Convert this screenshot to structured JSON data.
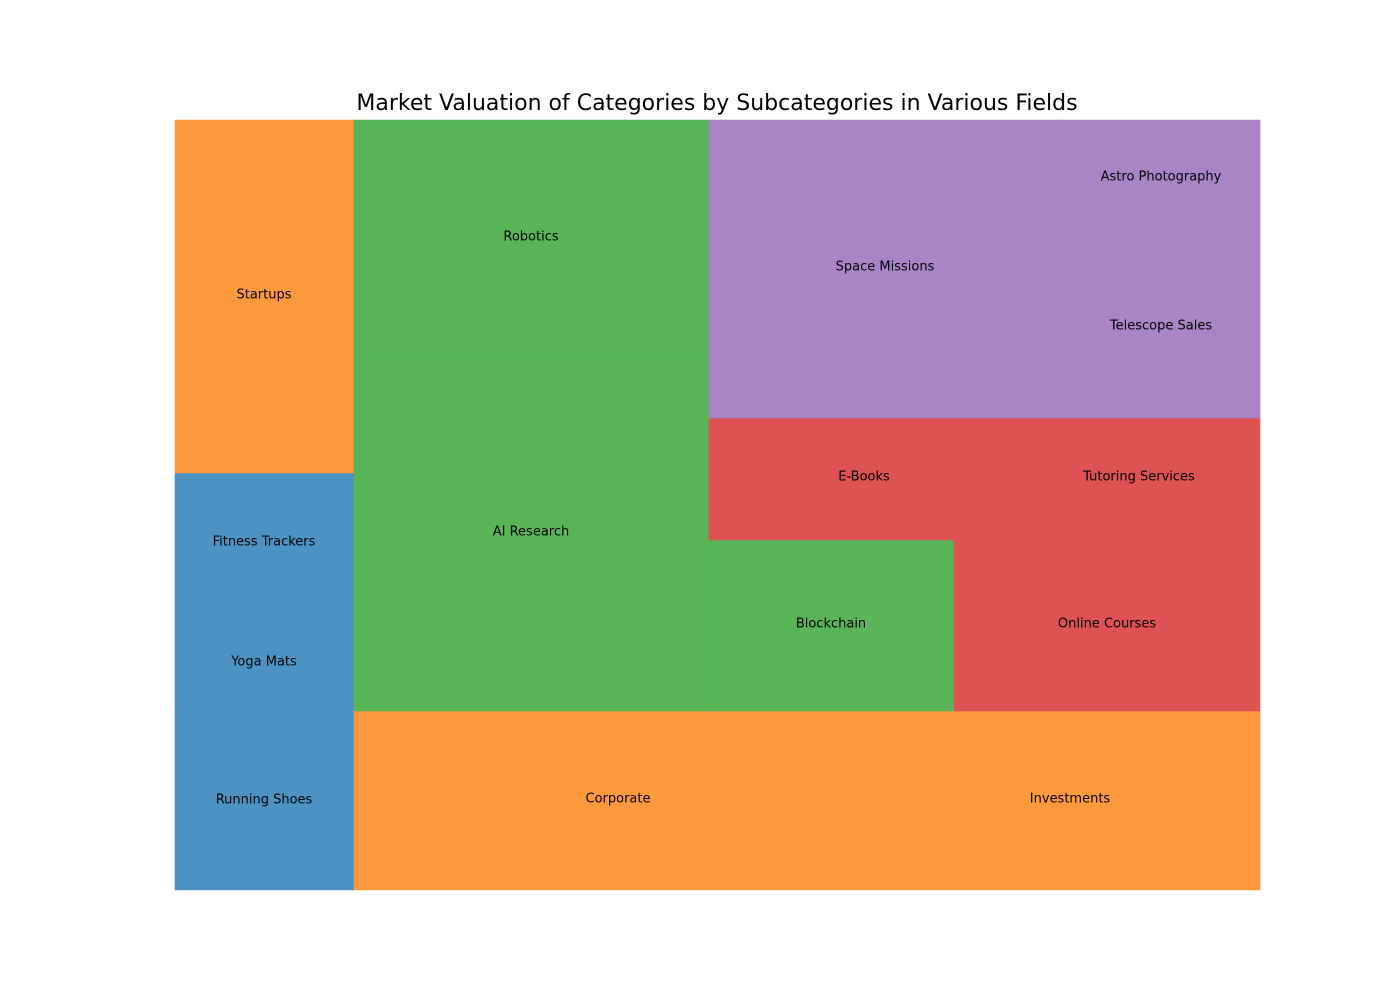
{
  "chart_data": {
    "type": "treemap",
    "title": "Market Valuation of Categories by Subcategories in Various Fields",
    "colors": {
      "blue": "#4c92c3",
      "orange": "#ff993e",
      "green": "#59b557",
      "red": "#de5253",
      "purple": "#a985c8"
    },
    "cells": [
      {
        "label": "Running Shoes",
        "color": "blue"
      },
      {
        "label": "Yoga Mats",
        "color": "blue"
      },
      {
        "label": "Fitness Trackers",
        "color": "blue"
      },
      {
        "label": "Startups",
        "color": "orange"
      },
      {
        "label": "Corporate",
        "color": "orange"
      },
      {
        "label": "Investments",
        "color": "orange"
      },
      {
        "label": "AI Research",
        "color": "green"
      },
      {
        "label": "Robotics",
        "color": "green"
      },
      {
        "label": "Blockchain",
        "color": "green"
      },
      {
        "label": "Online Courses",
        "color": "red"
      },
      {
        "label": "E-Books",
        "color": "red"
      },
      {
        "label": "Tutoring Services",
        "color": "red"
      },
      {
        "label": "Space Missions",
        "color": "purple"
      },
      {
        "label": "Telescope Sales",
        "color": "purple"
      },
      {
        "label": "Astro Photography",
        "color": "purple"
      }
    ]
  }
}
